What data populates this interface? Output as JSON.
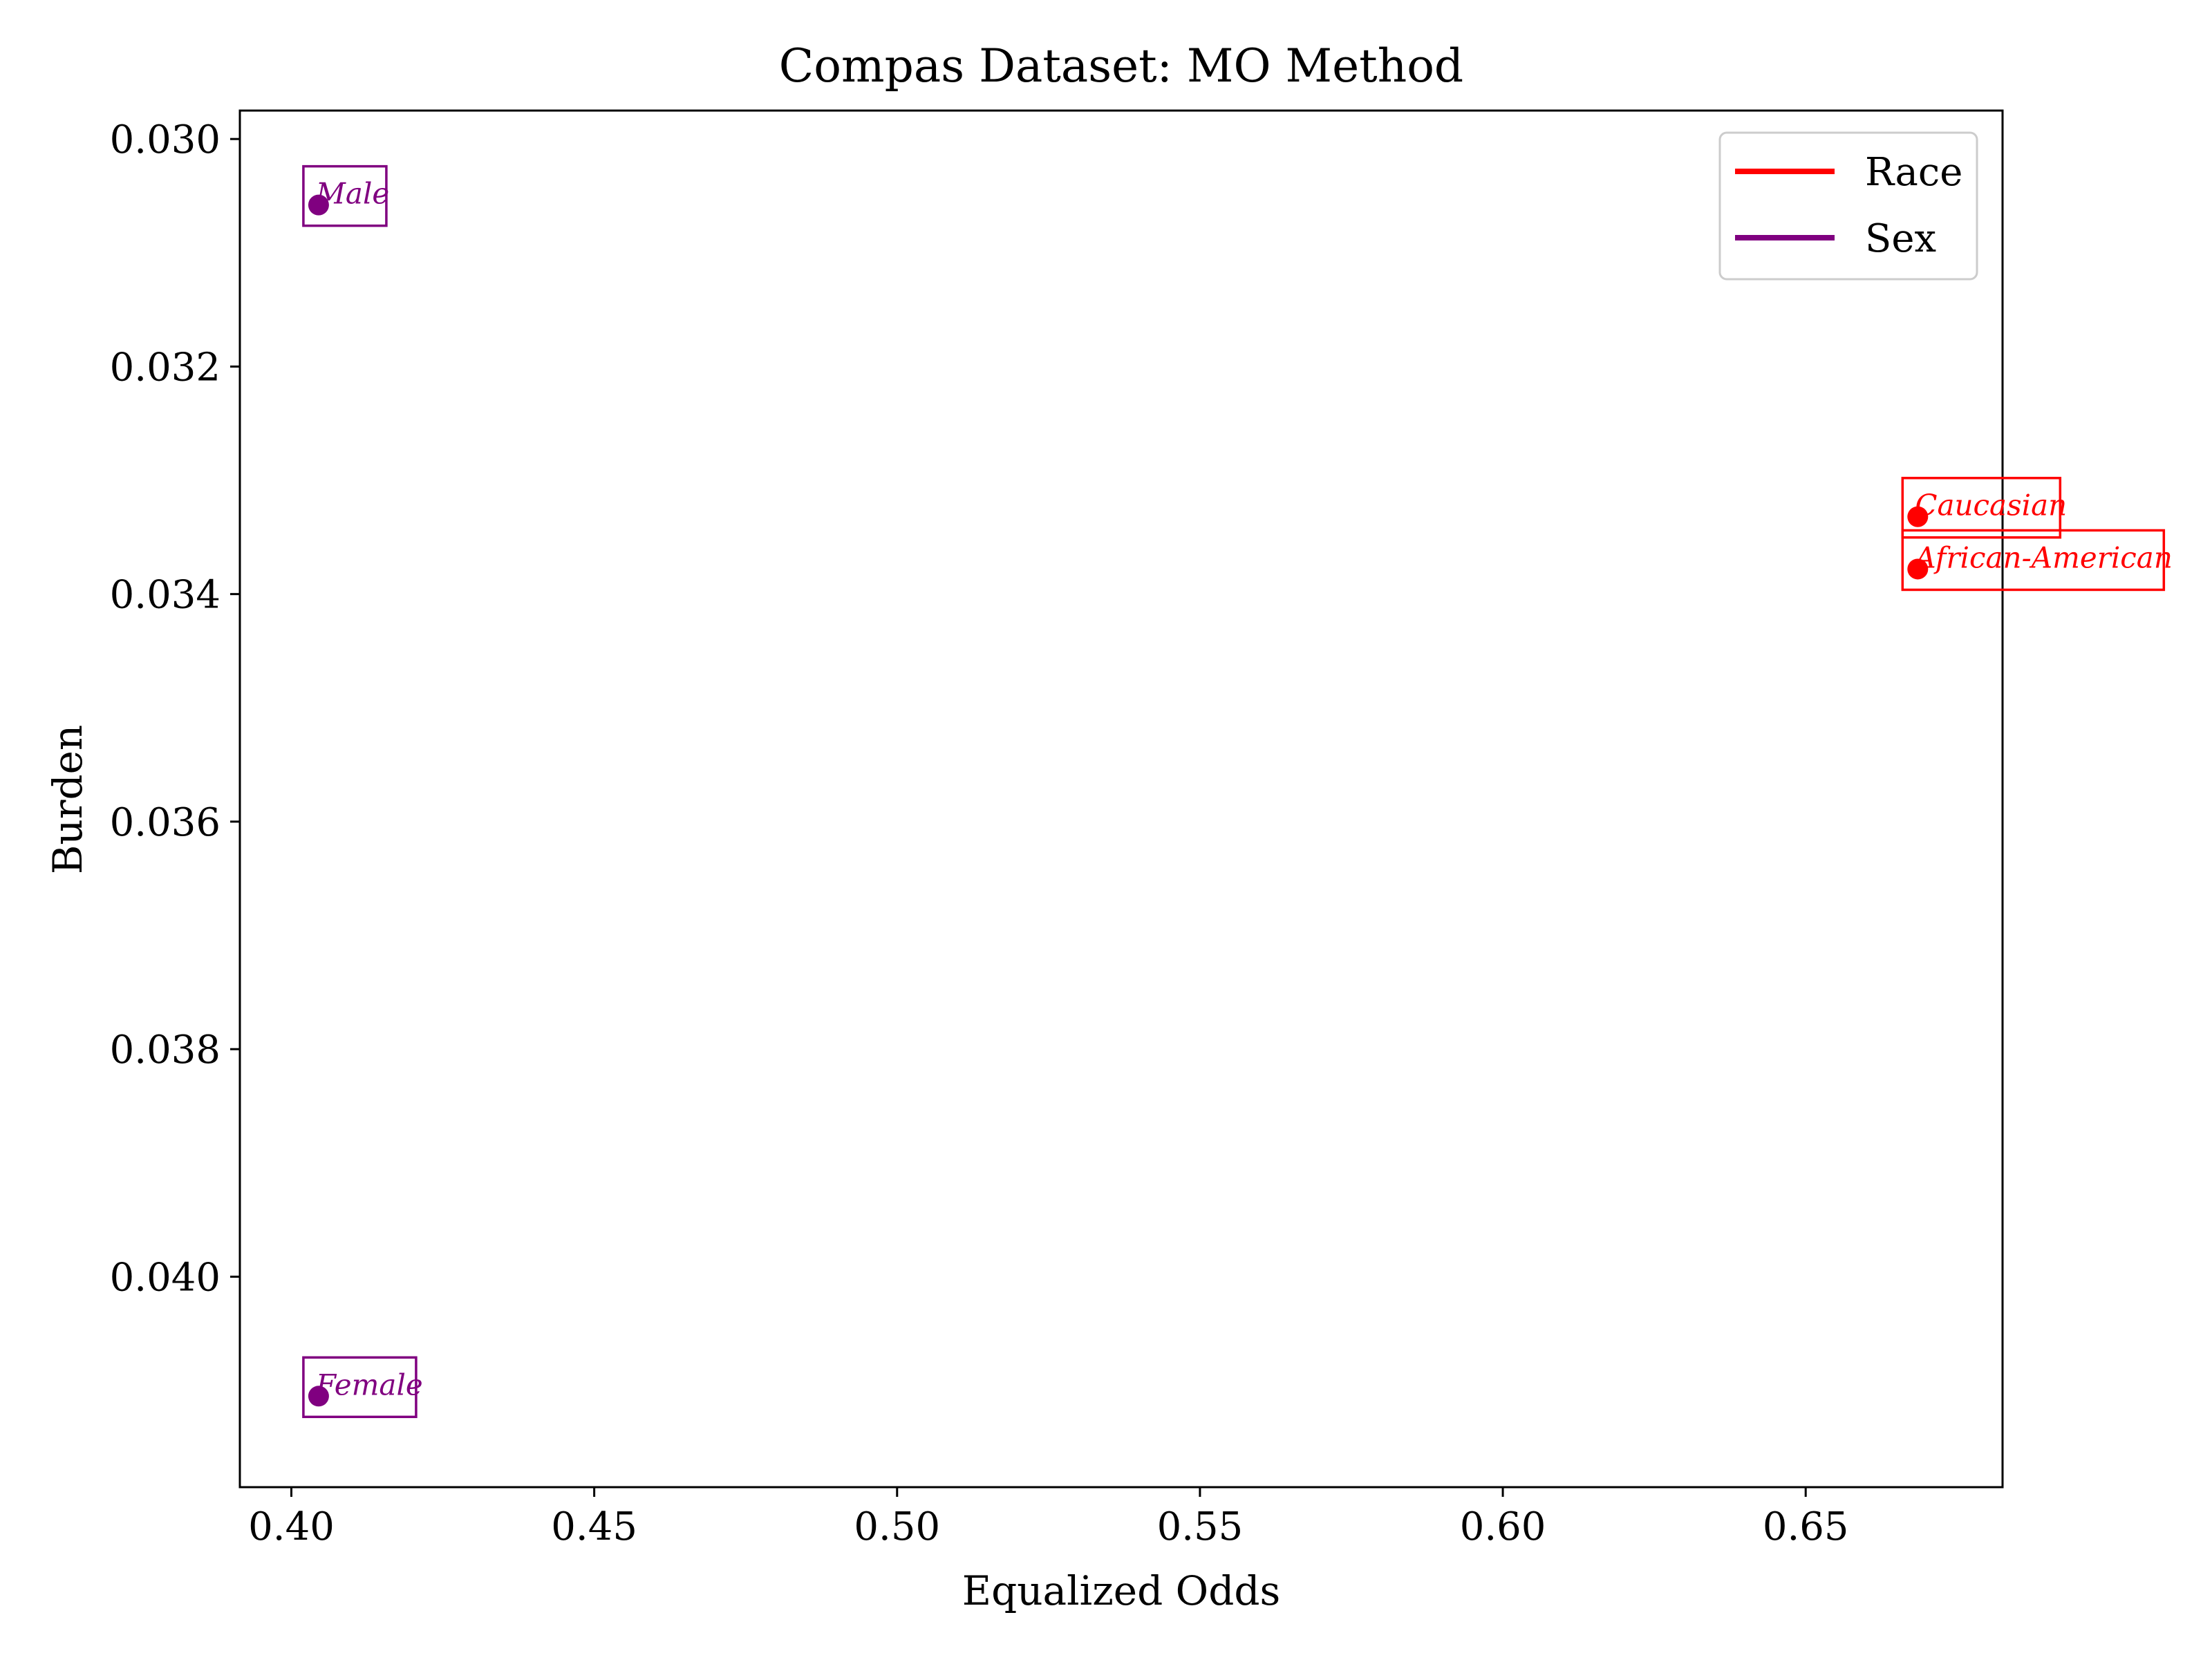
{
  "chart_data": {
    "type": "scatter",
    "title": "Compas Dataset: MO Method",
    "xlabel": "Equalized Odds",
    "ylabel": "Burden",
    "xlim": [
      0.3915,
      0.6825
    ],
    "ylim": [
      0.04185,
      0.02975
    ],
    "y_inverted": true,
    "x_ticks": [
      {
        "value": 0.4,
        "label": "0.40"
      },
      {
        "value": 0.45,
        "label": "0.45"
      },
      {
        "value": 0.5,
        "label": "0.50"
      },
      {
        "value": 0.55,
        "label": "0.55"
      },
      {
        "value": 0.6,
        "label": "0.60"
      },
      {
        "value": 0.65,
        "label": "0.65"
      }
    ],
    "y_ticks": [
      {
        "value": 0.03,
        "label": "0.030"
      },
      {
        "value": 0.032,
        "label": "0.032"
      },
      {
        "value": 0.034,
        "label": "0.034"
      },
      {
        "value": 0.036,
        "label": "0.036"
      },
      {
        "value": 0.038,
        "label": "0.038"
      },
      {
        "value": 0.04,
        "label": "0.040"
      }
    ],
    "grid": false,
    "legend_position": "top-right",
    "series": [
      {
        "name": "Race",
        "color": "#ff0000",
        "points": [
          {
            "x": 0.6685,
            "y": 0.03332,
            "label": "Caucasian"
          },
          {
            "x": 0.6685,
            "y": 0.03378,
            "label": "African-American"
          }
        ]
      },
      {
        "name": "Sex",
        "color": "#800080",
        "points": [
          {
            "x": 0.4045,
            "y": 0.03058,
            "label": "Male"
          },
          {
            "x": 0.4045,
            "y": 0.04105,
            "label": "Female"
          }
        ]
      }
    ]
  }
}
